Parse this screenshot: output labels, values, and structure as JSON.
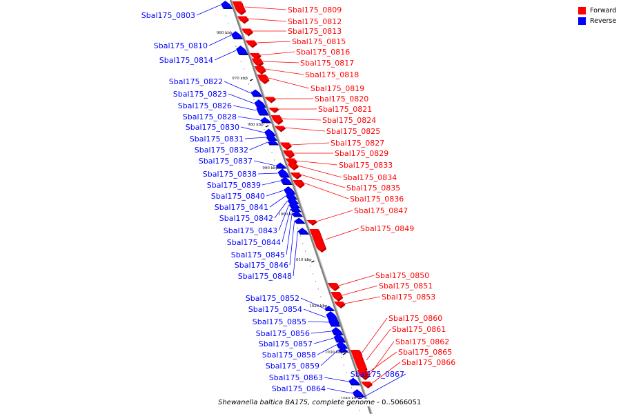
{
  "colors": {
    "forward": "#ff0000",
    "reverse": "#0000ff",
    "backbone": "#808080",
    "tick": "#000000"
  },
  "legend": {
    "forward": "Forward",
    "reverse": "Reverse"
  },
  "caption": {
    "organism": "Shewanella baltica BA175, complete genome",
    "range_label": "0..5066051"
  },
  "chart_data": {
    "type": "linear genome map",
    "tick_labels": [
      "960 kbp",
      "970 kbp",
      "980 kbp",
      "990 kbp",
      "1000 kbp",
      "1010 kbp",
      "1020 kbp",
      "1030 kbp",
      "1040 kbp"
    ],
    "genes": [
      {
        "name": "Sbal175_0803",
        "strand": "reverse"
      },
      {
        "name": "Sbal175_0809",
        "strand": "forward"
      },
      {
        "name": "Sbal175_0810",
        "strand": "reverse"
      },
      {
        "name": "Sbal175_0812",
        "strand": "forward"
      },
      {
        "name": "Sbal175_0813",
        "strand": "forward"
      },
      {
        "name": "Sbal175_0814",
        "strand": "reverse"
      },
      {
        "name": "Sbal175_0815",
        "strand": "forward"
      },
      {
        "name": "Sbal175_0816",
        "strand": "forward"
      },
      {
        "name": "Sbal175_0817",
        "strand": "forward"
      },
      {
        "name": "Sbal175_0818",
        "strand": "forward"
      },
      {
        "name": "Sbal175_0819",
        "strand": "forward"
      },
      {
        "name": "Sbal175_0820",
        "strand": "forward"
      },
      {
        "name": "Sbal175_0821",
        "strand": "forward"
      },
      {
        "name": "Sbal175_0822",
        "strand": "reverse"
      },
      {
        "name": "Sbal175_0823",
        "strand": "reverse"
      },
      {
        "name": "Sbal175_0824",
        "strand": "forward"
      },
      {
        "name": "Sbal175_0825",
        "strand": "forward"
      },
      {
        "name": "Sbal175_0826",
        "strand": "reverse"
      },
      {
        "name": "Sbal175_0827",
        "strand": "forward"
      },
      {
        "name": "Sbal175_0828",
        "strand": "reverse"
      },
      {
        "name": "Sbal175_0829",
        "strand": "forward"
      },
      {
        "name": "Sbal175_0830",
        "strand": "reverse"
      },
      {
        "name": "Sbal175_0831",
        "strand": "reverse"
      },
      {
        "name": "Sbal175_0832",
        "strand": "reverse"
      },
      {
        "name": "Sbal175_0833",
        "strand": "forward"
      },
      {
        "name": "Sbal175_0834",
        "strand": "forward"
      },
      {
        "name": "Sbal175_0835",
        "strand": "forward"
      },
      {
        "name": "Sbal175_0836",
        "strand": "forward"
      },
      {
        "name": "Sbal175_0837",
        "strand": "reverse"
      },
      {
        "name": "Sbal175_0838",
        "strand": "reverse"
      },
      {
        "name": "Sbal175_0839",
        "strand": "reverse"
      },
      {
        "name": "Sbal175_0840",
        "strand": "reverse"
      },
      {
        "name": "Sbal175_0841",
        "strand": "reverse"
      },
      {
        "name": "Sbal175_0842",
        "strand": "reverse"
      },
      {
        "name": "Sbal175_0843",
        "strand": "reverse"
      },
      {
        "name": "Sbal175_0844",
        "strand": "reverse"
      },
      {
        "name": "Sbal175_0845",
        "strand": "reverse"
      },
      {
        "name": "Sbal175_0846",
        "strand": "reverse"
      },
      {
        "name": "Sbal175_0847",
        "strand": "forward"
      },
      {
        "name": "Sbal175_0848",
        "strand": "reverse"
      },
      {
        "name": "Sbal175_0849",
        "strand": "forward"
      },
      {
        "name": "Sbal175_0850",
        "strand": "forward"
      },
      {
        "name": "Sbal175_0851",
        "strand": "forward"
      },
      {
        "name": "Sbal175_0852",
        "strand": "reverse"
      },
      {
        "name": "Sbal175_0853",
        "strand": "forward"
      },
      {
        "name": "Sbal175_0854",
        "strand": "reverse"
      },
      {
        "name": "Sbal175_0855",
        "strand": "reverse"
      },
      {
        "name": "Sbal175_0856",
        "strand": "reverse"
      },
      {
        "name": "Sbal175_0857",
        "strand": "reverse"
      },
      {
        "name": "Sbal175_0858",
        "strand": "reverse"
      },
      {
        "name": "Sbal175_0859",
        "strand": "reverse"
      },
      {
        "name": "Sbal175_0860",
        "strand": "forward"
      },
      {
        "name": "Sbal175_0861",
        "strand": "forward"
      },
      {
        "name": "Sbal175_0862",
        "strand": "forward"
      },
      {
        "name": "Sbal175_0863",
        "strand": "reverse"
      },
      {
        "name": "Sbal175_0864",
        "strand": "reverse"
      },
      {
        "name": "Sbal175_0865",
        "strand": "forward"
      },
      {
        "name": "Sbal175_0866",
        "strand": "forward"
      },
      {
        "name": "Sbal175_0867",
        "strand": "reverse"
      }
    ]
  }
}
